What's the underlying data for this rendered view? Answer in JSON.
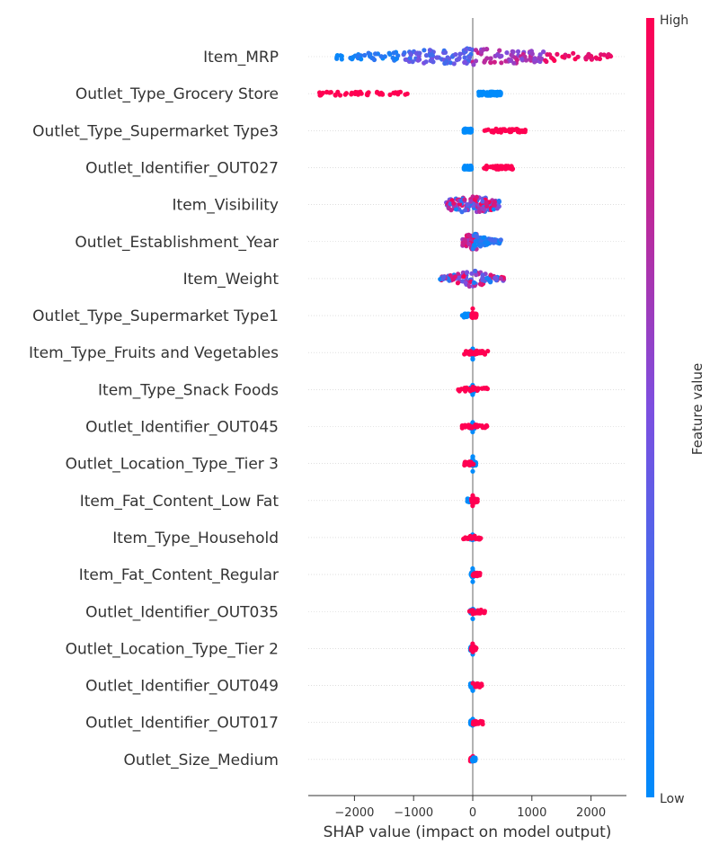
{
  "chart_data": {
    "type": "scatter",
    "subtype": "shap-beeswarm",
    "title": "",
    "xlabel": "SHAP value (impact on model output)",
    "ylabel": "",
    "xlim": [
      -2750,
      2600
    ],
    "xticks": [
      -2000,
      -1000,
      0,
      1000,
      2000
    ],
    "xtick_labels": [
      "−2000",
      "−1000",
      "0",
      "1000",
      "2000"
    ],
    "colorbar": {
      "label": "Feature value",
      "high_label": "High",
      "low_label": "Low",
      "low_color": "#008bfb",
      "high_color": "#ff0052"
    },
    "grid": "horizontal-dotted",
    "features": [
      {
        "name": "Item_MRP",
        "spread": 620,
        "points": [
          {
            "range": [
              -2300,
              -1200
            ],
            "value": [
              0.0,
              0.2
            ],
            "n": 40
          },
          {
            "range": [
              -1200,
              0
            ],
            "value": [
              0.2,
              0.5
            ],
            "n": 80
          },
          {
            "range": [
              0,
              1200
            ],
            "value": [
              0.5,
              0.85
            ],
            "n": 70
          },
          {
            "range": [
              1200,
              2350
            ],
            "value": [
              0.85,
              1.0
            ],
            "n": 35
          }
        ]
      },
      {
        "name": "Outlet_Type_Grocery Store",
        "spread": 1,
        "points": [
          {
            "range": [
              -2600,
              -1100
            ],
            "value": [
              1,
              1
            ],
            "n": 45
          },
          {
            "range": [
              100,
              480
            ],
            "value": [
              0,
              0
            ],
            "n": 140
          }
        ]
      },
      {
        "name": "Outlet_Type_Supermarket Type3",
        "spread": 1,
        "points": [
          {
            "range": [
              -150,
              -20
            ],
            "value": [
              0,
              0
            ],
            "n": 90
          },
          {
            "range": [
              200,
              900
            ],
            "value": [
              1,
              1
            ],
            "n": 45
          }
        ]
      },
      {
        "name": "Outlet_Identifier_OUT027",
        "spread": 1,
        "points": [
          {
            "range": [
              -150,
              -20
            ],
            "value": [
              0,
              0
            ],
            "n": 90
          },
          {
            "range": [
              150,
              700
            ],
            "value": [
              1,
              1
            ],
            "n": 45
          }
        ]
      },
      {
        "name": "Item_Visibility",
        "spread": 200,
        "points": [
          {
            "range": [
              -450,
              450
            ],
            "value": [
              0.0,
              1.0
            ],
            "n": 130
          }
        ]
      },
      {
        "name": "Outlet_Establishment_Year",
        "spread": 80,
        "points": [
          {
            "range": [
              -180,
              80
            ],
            "value": [
              0.6,
              1.0
            ],
            "n": 60
          },
          {
            "range": [
              0,
              480
            ],
            "value": [
              0.0,
              0.3
            ],
            "n": 70
          }
        ]
      },
      {
        "name": "Item_Weight",
        "spread": 120,
        "points": [
          {
            "range": [
              -550,
              550
            ],
            "value": [
              0.0,
              1.0
            ],
            "n": 100
          }
        ]
      },
      {
        "name": "Outlet_Type_Supermarket Type1",
        "spread": 1,
        "points": [
          {
            "range": [
              -180,
              -60
            ],
            "value": [
              0,
              0
            ],
            "n": 25
          },
          {
            "range": [
              -20,
              60
            ],
            "value": [
              1,
              1
            ],
            "n": 80
          }
        ]
      },
      {
        "name": "Item_Type_Fruits and Vegetables",
        "spread": 1,
        "points": [
          {
            "range": [
              -40,
              30
            ],
            "value": [
              0,
              0
            ],
            "n": 80
          },
          {
            "range": [
              -150,
              280
            ],
            "value": [
              1,
              1
            ],
            "n": 30
          }
        ]
      },
      {
        "name": "Item_Type_Snack Foods",
        "spread": 1,
        "points": [
          {
            "range": [
              -40,
              30
            ],
            "value": [
              0,
              0
            ],
            "n": 80
          },
          {
            "range": [
              -250,
              250
            ],
            "value": [
              1,
              1
            ],
            "n": 30
          }
        ]
      },
      {
        "name": "Outlet_Identifier_OUT045",
        "spread": 1,
        "points": [
          {
            "range": [
              -40,
              30
            ],
            "value": [
              0,
              0
            ],
            "n": 80
          },
          {
            "range": [
              -200,
              240
            ],
            "value": [
              1,
              1
            ],
            "n": 30
          }
        ]
      },
      {
        "name": "Outlet_Location_Type_Tier 3",
        "spread": 1,
        "points": [
          {
            "range": [
              -30,
              50
            ],
            "value": [
              0,
              0
            ],
            "n": 80
          },
          {
            "range": [
              -150,
              20
            ],
            "value": [
              1,
              1
            ],
            "n": 25
          }
        ]
      },
      {
        "name": "Item_Fat_Content_Low Fat",
        "spread": 1,
        "points": [
          {
            "range": [
              -90,
              20
            ],
            "value": [
              0,
              0
            ],
            "n": 40
          },
          {
            "range": [
              -20,
              80
            ],
            "value": [
              1,
              1
            ],
            "n": 60
          }
        ]
      },
      {
        "name": "Item_Type_Household",
        "spread": 1,
        "points": [
          {
            "range": [
              -40,
              30
            ],
            "value": [
              0,
              0
            ],
            "n": 80
          },
          {
            "range": [
              -180,
              160
            ],
            "value": [
              1,
              1
            ],
            "n": 25
          }
        ]
      },
      {
        "name": "Item_Fat_Content_Regular",
        "spread": 1,
        "points": [
          {
            "range": [
              -30,
              40
            ],
            "value": [
              0,
              0
            ],
            "n": 80
          },
          {
            "range": [
              0,
              130
            ],
            "value": [
              1,
              1
            ],
            "n": 20
          }
        ]
      },
      {
        "name": "Outlet_Identifier_OUT035",
        "spread": 1,
        "points": [
          {
            "range": [
              -40,
              30
            ],
            "value": [
              0,
              0
            ],
            "n": 80
          },
          {
            "range": [
              -100,
              220
            ],
            "value": [
              1,
              1
            ],
            "n": 20
          }
        ]
      },
      {
        "name": "Outlet_Location_Type_Tier 2",
        "spread": 1,
        "points": [
          {
            "range": [
              -40,
              30
            ],
            "value": [
              0,
              0
            ],
            "n": 80
          },
          {
            "range": [
              -30,
              60
            ],
            "value": [
              1,
              1
            ],
            "n": 25
          }
        ]
      },
      {
        "name": "Outlet_Identifier_OUT049",
        "spread": 1,
        "points": [
          {
            "range": [
              -40,
              30
            ],
            "value": [
              0,
              0
            ],
            "n": 80
          },
          {
            "range": [
              0,
              160
            ],
            "value": [
              1,
              1
            ],
            "n": 20
          }
        ]
      },
      {
        "name": "Outlet_Identifier_OUT017",
        "spread": 1,
        "points": [
          {
            "range": [
              -40,
              30
            ],
            "value": [
              0,
              0
            ],
            "n": 80
          },
          {
            "range": [
              0,
              170
            ],
            "value": [
              1,
              1
            ],
            "n": 20
          }
        ]
      },
      {
        "name": "Outlet_Size_Medium",
        "spread": 1,
        "points": [
          {
            "range": [
              -40,
              20
            ],
            "value": [
              1,
              1
            ],
            "n": 70
          },
          {
            "range": [
              -10,
              60
            ],
            "value": [
              0,
              0
            ],
            "n": 20
          }
        ]
      }
    ]
  }
}
